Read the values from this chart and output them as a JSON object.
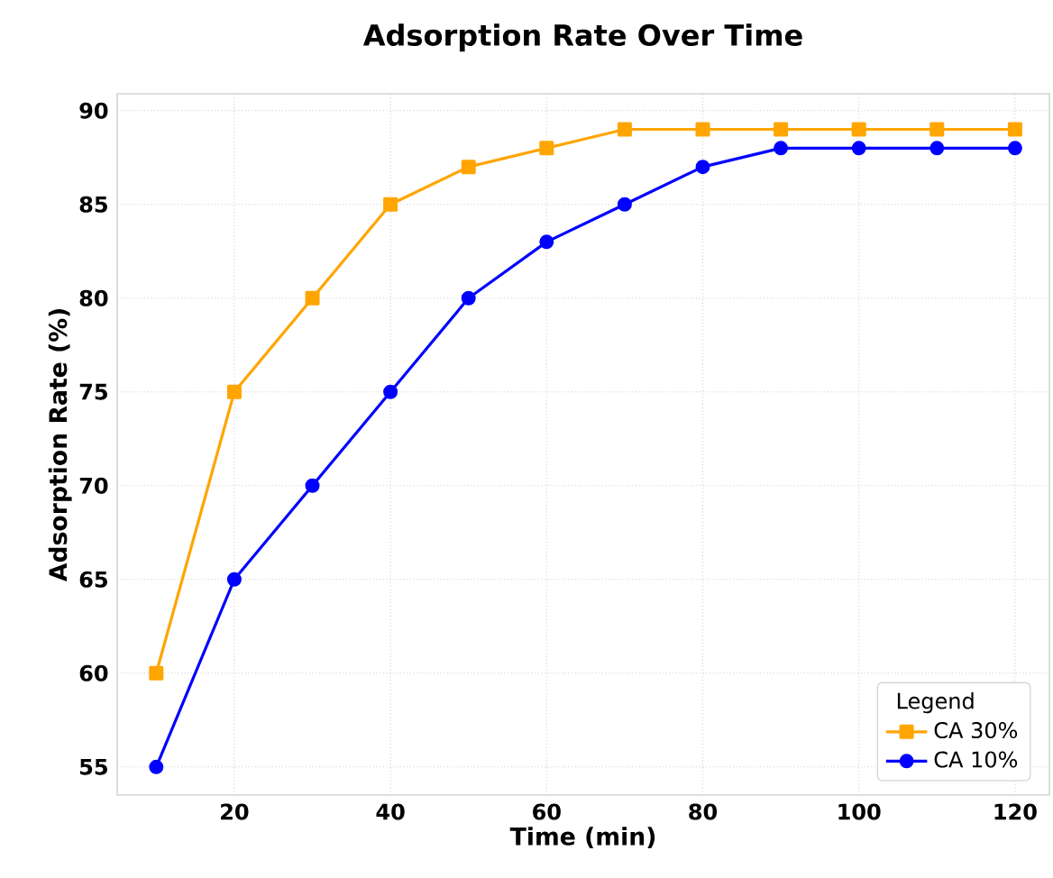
{
  "chart_data": {
    "type": "line",
    "title": "Adsorption Rate Over Time",
    "xlabel": "Time (min)",
    "ylabel": "Adsorption Rate (%)",
    "legend_title": "Legend",
    "x": [
      10,
      20,
      30,
      40,
      50,
      60,
      70,
      80,
      90,
      100,
      110,
      120
    ],
    "series": [
      {
        "name": "CA 30%",
        "color": "#ffa500",
        "marker": "square",
        "values": [
          60,
          75,
          80,
          85,
          87,
          88,
          89,
          89,
          89,
          89,
          89,
          89
        ]
      },
      {
        "name": "CA 10%",
        "color": "#0000ff",
        "marker": "circle",
        "values": [
          55,
          65,
          70,
          75,
          80,
          83,
          85,
          87,
          88,
          88,
          88,
          88
        ]
      }
    ],
    "xlim": [
      5,
      124.4
    ],
    "ylim": [
      53.5,
      90.9
    ],
    "xticks": [
      20,
      40,
      60,
      80,
      100,
      120
    ],
    "yticks": [
      55,
      60,
      65,
      70,
      75,
      80,
      85,
      90
    ],
    "grid": true,
    "legend": "bottom right",
    "line_style": "solid"
  }
}
